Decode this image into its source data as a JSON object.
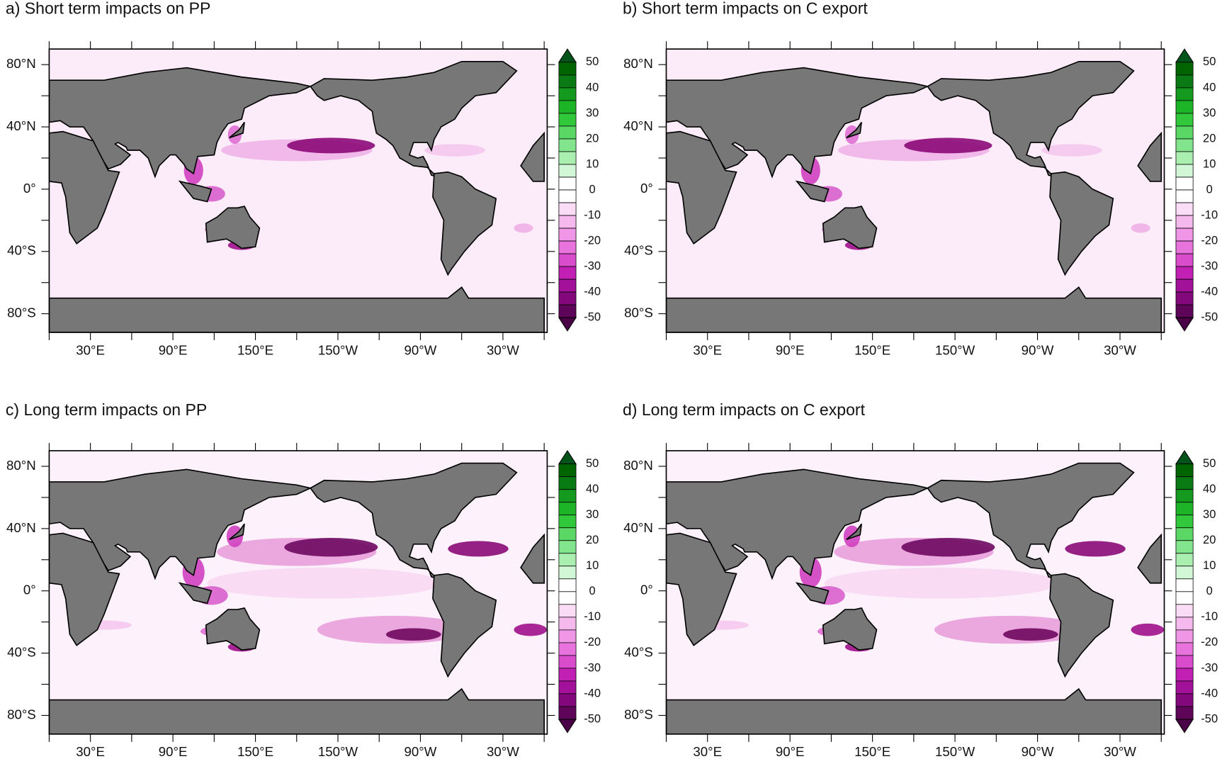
{
  "panels": [
    {
      "title": "a) Short term impacts on PP"
    },
    {
      "title": "b) Short term impacts on C export"
    },
    {
      "title": "c) Long term impacts on PP"
    },
    {
      "title": "d) Long term impacts on C export"
    }
  ],
  "lat_labels": [
    "80°N",
    "40°N",
    "0°",
    "40°S",
    "80°S"
  ],
  "lon_labels": [
    "30°E",
    "90°E",
    "150°E",
    "150°W",
    "90°W",
    "30°W"
  ],
  "colorbar_labels": [
    "50",
    "40",
    "30",
    "20",
    "10",
    "0",
    "-10",
    "-20",
    "-30",
    "-40",
    "-50"
  ]
}
